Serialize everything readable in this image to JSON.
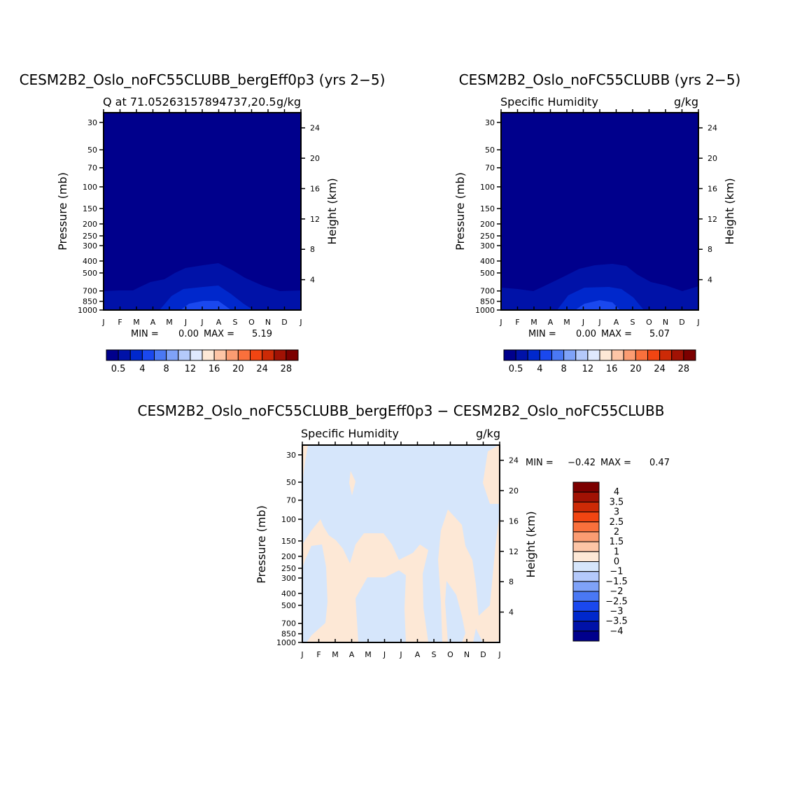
{
  "colors": {
    "abs_levels": [
      "#00008c",
      "#0012a8",
      "#0028cc",
      "#1a48ee",
      "#4a78f4",
      "#7fa2f8",
      "#b4c9fb",
      "#dfe9fe",
      "#fde8d6",
      "#fdc5a6",
      "#fb9c72",
      "#f9703c",
      "#f14512",
      "#cc2a06",
      "#a11204",
      "#7c0000"
    ],
    "diff_levels": [
      "#00008c",
      "#0012a8",
      "#0028cc",
      "#1a48ee",
      "#4a78f4",
      "#7fa2f8",
      "#b4c9fb",
      "#d6e6fb",
      "#fde8d6",
      "#fdc5a6",
      "#fb9c72",
      "#f9703c",
      "#f14512",
      "#cc2a06",
      "#a11204",
      "#7c0000"
    ]
  },
  "chart_data": [
    {
      "type": "contour",
      "title": "CESM2B2_Oslo_noFC55CLUBB_bergEff0p3 (yrs 2−5)",
      "left_label": "Q at 71.05263157894737,20.5",
      "right_label": "g/kg",
      "ylabel": "Pressure (mb)",
      "ylabel_right": "Height (km)",
      "x_ticks": [
        "J",
        "F",
        "M",
        "A",
        "M",
        "J",
        "J",
        "A",
        "S",
        "O",
        "N",
        "D",
        "J"
      ],
      "y_ticks": [
        "30",
        "50",
        "70",
        "100",
        "150",
        "200",
        "250",
        "300",
        "400",
        "500",
        "700",
        "850",
        "1000"
      ],
      "y_ticks_right": [
        "24",
        "20",
        "16",
        "12",
        "8",
        "4"
      ],
      "min_label": "MIN =",
      "min_value": "0.00",
      "max_label": "MAX =",
      "max_value": "5.19",
      "colorbar_labels": [
        "0.5",
        "4",
        "8",
        "12",
        "16",
        "20",
        "24",
        "28"
      ],
      "contour_levels": [
        0.5,
        2,
        4,
        6,
        8,
        10,
        12,
        14,
        16,
        18,
        20,
        22,
        24,
        26,
        28
      ],
      "range": [
        0.0,
        5.19
      ]
    },
    {
      "type": "contour",
      "title": "CESM2B2_Oslo_noFC55CLUBB (yrs 2−5)",
      "left_label": "Specific Humidity",
      "right_label": "g/kg",
      "ylabel": "Pressure (mb)",
      "ylabel_right": "Height (km)",
      "x_ticks": [
        "J",
        "F",
        "M",
        "A",
        "M",
        "J",
        "J",
        "A",
        "S",
        "O",
        "N",
        "D",
        "J"
      ],
      "y_ticks": [
        "30",
        "50",
        "70",
        "100",
        "150",
        "200",
        "250",
        "300",
        "400",
        "500",
        "700",
        "850",
        "1000"
      ],
      "y_ticks_right": [
        "24",
        "20",
        "16",
        "12",
        "8",
        "4"
      ],
      "min_label": "MIN =",
      "min_value": "0.00",
      "max_label": "MAX =",
      "max_value": "5.07",
      "colorbar_labels": [
        "0.5",
        "4",
        "8",
        "12",
        "16",
        "20",
        "24",
        "28"
      ],
      "contour_levels": [
        0.5,
        2,
        4,
        6,
        8,
        10,
        12,
        14,
        16,
        18,
        20,
        22,
        24,
        26,
        28
      ],
      "range": [
        0.0,
        5.07
      ]
    },
    {
      "type": "contour",
      "title": "CESM2B2_Oslo_noFC55CLUBB_bergEff0p3 − CESM2B2_Oslo_noFC55CLUBB",
      "left_label": "Specific Humidity",
      "right_label": "g/kg",
      "ylabel": "Pressure (mb)",
      "ylabel_right": "Height (km)",
      "x_ticks": [
        "J",
        "F",
        "M",
        "A",
        "M",
        "J",
        "J",
        "A",
        "S",
        "O",
        "N",
        "D",
        "J"
      ],
      "y_ticks": [
        "30",
        "50",
        "70",
        "100",
        "150",
        "200",
        "250",
        "300",
        "400",
        "500",
        "700",
        "850",
        "1000"
      ],
      "y_ticks_right": [
        "24",
        "20",
        "16",
        "12",
        "8",
        "4"
      ],
      "min_label": "MIN =",
      "min_value": "−0.42",
      "max_label": "MAX =",
      "max_value": "0.47",
      "colorbar_labels": [
        "4",
        "3.5",
        "3",
        "2.5",
        "2",
        "1.5",
        "1",
        "0",
        "−1",
        "−1.5",
        "−2",
        "−2.5",
        "−3",
        "−3.5",
        "−4"
      ],
      "contour_levels": [
        -4,
        -3.5,
        -3,
        -2.5,
        -2,
        -1.5,
        -1,
        0,
        1,
        1.5,
        2,
        2.5,
        3,
        3.5,
        4
      ],
      "range": [
        -0.42,
        0.47
      ]
    }
  ]
}
